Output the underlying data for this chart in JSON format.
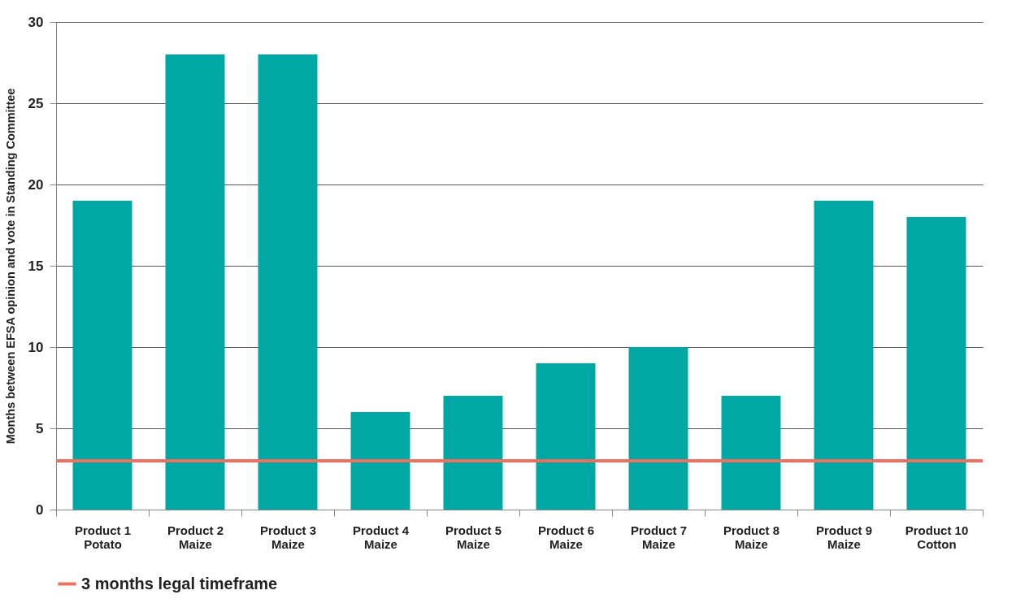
{
  "chart_data": {
    "type": "bar",
    "ylabel": "Months between EFSA opinion and vote in Standing Committee",
    "categories": [
      "Product 1 Potato",
      "Product 2 Maize",
      "Product 3 Maize",
      "Product 4 Maize",
      "Product 5 Maize",
      "Product 6 Maize",
      "Product 7 Maize",
      "Product 8 Maize",
      "Product 9 Maize",
      "Product 10 Cotton"
    ],
    "values": [
      19,
      28,
      28,
      6,
      7,
      9,
      10,
      7,
      19,
      18
    ],
    "color": "#00a8a4",
    "ylim": [
      0,
      30
    ],
    "yticks": [
      0,
      5,
      10,
      15,
      20,
      25,
      30
    ],
    "grid": "y",
    "ref_lines": [
      {
        "axis": "y",
        "value": 3,
        "label": "3 months legal timeframe",
        "color": "#f07060"
      }
    ],
    "legend": "bottom"
  }
}
